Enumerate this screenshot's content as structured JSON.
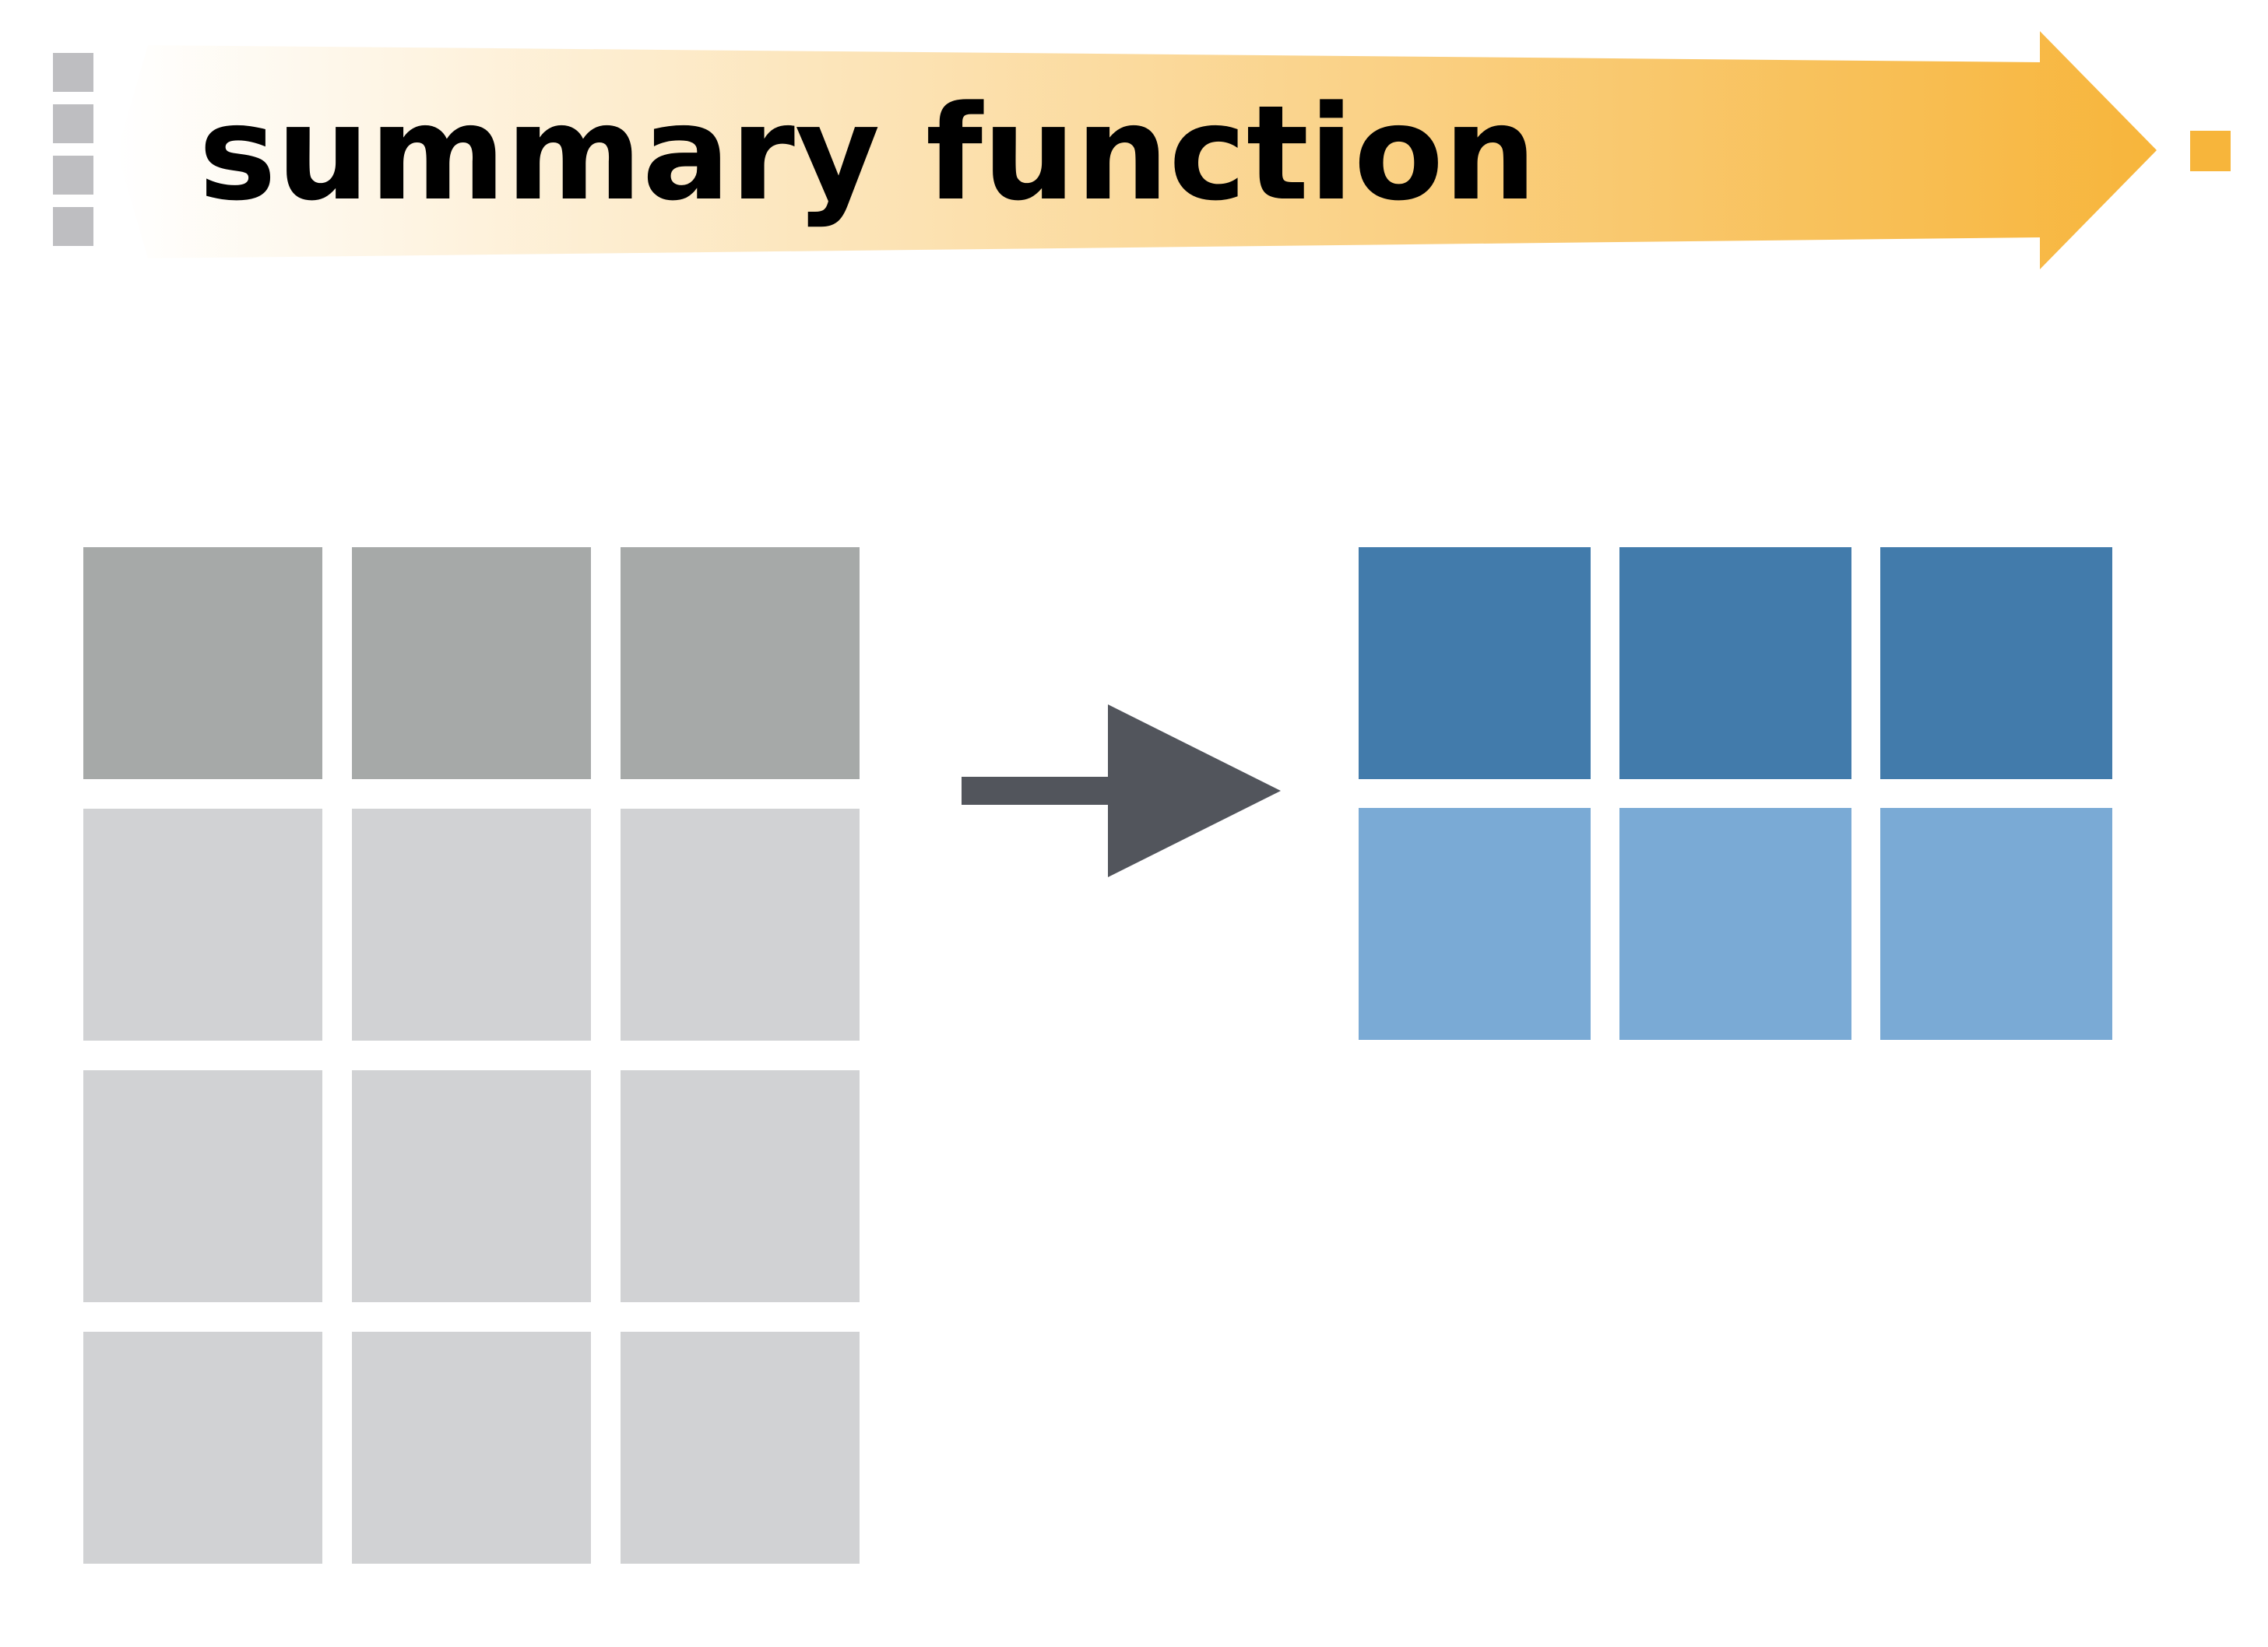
{
  "banner": {
    "title": "summary function"
  },
  "colors": {
    "side_ticks": "#bebec1",
    "banner_start": "#ffffff",
    "banner_end": "#f7b53b",
    "terminal_square": "#f7b53b",
    "input_header": "#a6a9a8",
    "input_body": "#d1d2d4",
    "arrow": "#52555c",
    "output_header": "#427bab",
    "output_body": "#7aaad5"
  },
  "input_table": {
    "columns": 3,
    "header_rows": 1,
    "body_rows": 3
  },
  "output_table": {
    "columns": 3,
    "header_rows": 1,
    "body_rows": 1
  }
}
